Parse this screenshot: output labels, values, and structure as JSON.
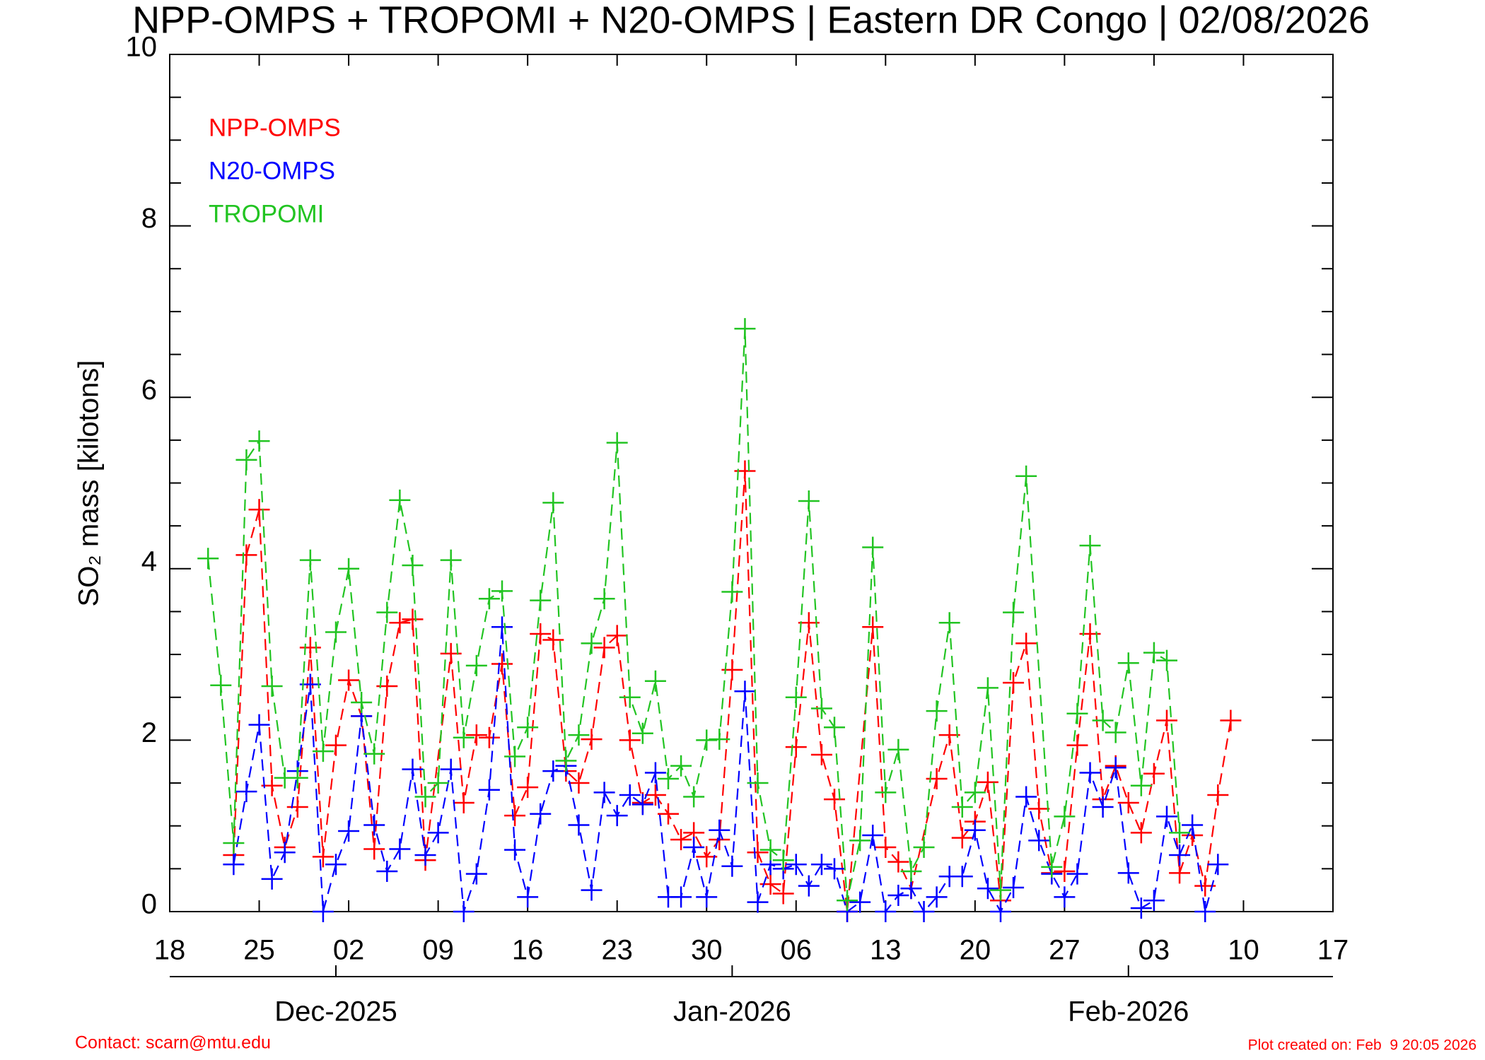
{
  "chart_data": {
    "type": "line",
    "title": "NPP-OMPS + TROPOMI + N20-OMPS | Eastern DR Congo | 02/08/2026",
    "ylabel": "SO₂ mass [kilotons]",
    "contact": "Contact: scarn@mtu.edu",
    "created": "Plot created on: Feb  9 20:05 2026",
    "ylim": [
      0,
      10
    ],
    "yticks": [
      0,
      2,
      4,
      6,
      8,
      10
    ],
    "yminorticks": [
      0.5,
      1,
      1.5,
      2.5,
      3,
      3.5,
      4.5,
      5,
      5.5,
      6.5,
      7,
      7.5,
      8.5,
      9,
      9.5
    ],
    "xlim": [
      "2025-11-18",
      "2026-02-17"
    ],
    "xticks": [
      {
        "value": "2025-11-18",
        "label": "18"
      },
      {
        "value": "2025-11-25",
        "label": "25"
      },
      {
        "value": "2025-12-02",
        "label": "02"
      },
      {
        "value": "2025-12-09",
        "label": "09"
      },
      {
        "value": "2025-12-16",
        "label": "16"
      },
      {
        "value": "2025-12-23",
        "label": "23"
      },
      {
        "value": "2025-12-30",
        "label": "30"
      },
      {
        "value": "2026-01-06",
        "label": "06"
      },
      {
        "value": "2026-01-13",
        "label": "13"
      },
      {
        "value": "2026-01-20",
        "label": "20"
      },
      {
        "value": "2026-01-27",
        "label": "27"
      },
      {
        "value": "2026-02-03",
        "label": "03"
      },
      {
        "value": "2026-02-10",
        "label": "10"
      },
      {
        "value": "2026-02-17",
        "label": "17"
      }
    ],
    "monthticks": [
      {
        "value": "2025-12-01",
        "label": "Dec-2025"
      },
      {
        "value": "2026-01-01",
        "label": "Jan-2026"
      },
      {
        "value": "2026-02-01",
        "label": "Feb-2026"
      }
    ],
    "legend": "upper left",
    "series": [
      {
        "name": "NPP-OMPS",
        "color": "#ff0000",
        "x": [
          "2025-11-23",
          "2025-11-24",
          "2025-11-25",
          "2025-11-26",
          "2025-11-27",
          "2025-11-28",
          "2025-11-29",
          "2025-11-30",
          "2025-12-01",
          "2025-12-02",
          "2025-12-03",
          "2025-12-04",
          "2025-12-05",
          "2025-12-06",
          "2025-12-07",
          "2025-12-08",
          "2025-12-10",
          "2025-12-11",
          "2025-12-12",
          "2025-12-13",
          "2025-12-14",
          "2025-12-15",
          "2025-12-16",
          "2025-12-17",
          "2025-12-18",
          "2025-12-19",
          "2025-12-20",
          "2025-12-21",
          "2025-12-22",
          "2025-12-23",
          "2025-12-24",
          "2025-12-25",
          "2025-12-26",
          "2025-12-27",
          "2025-12-28",
          "2025-12-29",
          "2025-12-30",
          "2025-12-31",
          "2026-01-01",
          "2026-01-02",
          "2026-01-03",
          "2026-01-04",
          "2026-01-05",
          "2026-01-06",
          "2026-01-07",
          "2026-01-08",
          "2026-01-09",
          "2026-01-10",
          "2026-01-12",
          "2026-01-13",
          "2026-01-14",
          "2026-01-15",
          "2026-01-17",
          "2026-01-18",
          "2026-01-19",
          "2026-01-20",
          "2026-01-21",
          "2026-01-22",
          "2026-01-23",
          "2026-01-24",
          "2026-01-25",
          "2026-01-26",
          "2026-01-27",
          "2026-01-28",
          "2026-01-29",
          "2026-01-30",
          "2026-01-31",
          "2026-02-01",
          "2026-02-02",
          "2026-02-03",
          "2026-02-04",
          "2026-02-05",
          "2026-02-06",
          "2026-02-07",
          "2026-02-08",
          "2026-02-09"
        ],
        "values": [
          0.66,
          4.16,
          4.69,
          1.47,
          0.75,
          1.22,
          3.08,
          0.64,
          1.94,
          2.7,
          2.28,
          0.73,
          2.63,
          3.37,
          3.41,
          0.6,
          3.01,
          1.27,
          2.06,
          2.03,
          2.89,
          1.12,
          1.45,
          3.24,
          3.17,
          1.64,
          1.5,
          2.01,
          3.08,
          3.22,
          2.0,
          1.27,
          1.36,
          1.14,
          0.84,
          0.92,
          0.64,
          0.84,
          2.82,
          5.14,
          0.69,
          0.32,
          0.21,
          1.92,
          3.37,
          1.83,
          1.31,
          0,
          3.32,
          0.75,
          0.58,
          0.27,
          1.55,
          2.06,
          0.86,
          1.05,
          1.51,
          0.13,
          2.67,
          3.13,
          1.2,
          0.45,
          0.47,
          1.94,
          3.24,
          1.31,
          1.7,
          1.27,
          0.92,
          1.61,
          2.23,
          0.45,
          0.89,
          0.3,
          1.36,
          2.23
        ]
      },
      {
        "name": "N20-OMPS",
        "color": "#0000ff",
        "x": [
          "2025-11-23",
          "2025-11-24",
          "2025-11-25",
          "2025-11-26",
          "2025-11-27",
          "2025-11-28",
          "2025-11-29",
          "2025-11-30",
          "2025-12-01",
          "2025-12-02",
          "2025-12-03",
          "2025-12-04",
          "2025-12-05",
          "2025-12-06",
          "2025-12-07",
          "2025-12-08",
          "2025-12-09",
          "2025-12-10",
          "2025-12-11",
          "2025-12-12",
          "2025-12-13",
          "2025-12-14",
          "2025-12-15",
          "2025-12-16",
          "2025-12-17",
          "2025-12-18",
          "2025-12-19",
          "2025-12-20",
          "2025-12-21",
          "2025-12-22",
          "2025-12-23",
          "2025-12-24",
          "2025-12-25",
          "2025-12-26",
          "2025-12-27",
          "2025-12-28",
          "2025-12-29",
          "2025-12-30",
          "2025-12-31",
          "2026-01-01",
          "2026-01-02",
          "2026-01-03",
          "2026-01-04",
          "2026-01-05",
          "2026-01-06",
          "2026-01-07",
          "2026-01-08",
          "2026-01-09",
          "2026-01-10",
          "2026-01-11",
          "2026-01-12",
          "2026-01-13",
          "2026-01-14",
          "2026-01-15",
          "2026-01-16",
          "2026-01-17",
          "2026-01-18",
          "2026-01-19",
          "2026-01-20",
          "2026-01-21",
          "2026-01-22",
          "2026-01-23",
          "2026-01-24",
          "2026-01-25",
          "2026-01-26",
          "2026-01-27",
          "2026-01-28",
          "2026-01-29",
          "2026-01-30",
          "2026-01-31",
          "2026-02-01",
          "2026-02-02",
          "2026-02-03",
          "2026-02-04",
          "2026-02-05",
          "2026-02-06",
          "2026-02-07",
          "2026-02-08"
        ],
        "values": [
          0.55,
          1.4,
          2.18,
          0.38,
          0.69,
          1.64,
          2.65,
          0,
          0.55,
          0.94,
          2.28,
          1.01,
          0.47,
          0.73,
          1.66,
          0.66,
          0.92,
          1.66,
          0,
          0.44,
          1.42,
          3.32,
          0.72,
          0.17,
          1.14,
          1.64,
          1.7,
          1.01,
          0.25,
          1.39,
          1.12,
          1.36,
          1.25,
          1.62,
          0.17,
          0.17,
          0.75,
          0.17,
          0.95,
          0.53,
          2.57,
          0.11,
          0.55,
          0.5,
          0.55,
          0.3,
          0.55,
          0.5,
          0,
          0.11,
          0.89,
          0,
          0.19,
          0.27,
          0,
          0.17,
          0.41,
          0.41,
          0.95,
          0.27,
          0,
          0.28,
          1.34,
          0.83,
          0.44,
          0.17,
          0.44,
          1.62,
          1.22,
          1.68,
          0.45,
          0.04,
          0.13,
          1.11,
          0.66,
          1.01,
          0,
          0.55
        ]
      },
      {
        "name": "TROPOMI",
        "color": "#22c422",
        "x": [
          "2025-11-21",
          "2025-11-22",
          "2025-11-23",
          "2025-11-24",
          "2025-11-25",
          "2025-11-26",
          "2025-11-27",
          "2025-11-28",
          "2025-11-29",
          "2025-11-30",
          "2025-12-01",
          "2025-12-02",
          "2025-12-03",
          "2025-12-04",
          "2025-12-05",
          "2025-12-06",
          "2025-12-07",
          "2025-12-08",
          "2025-12-09",
          "2025-12-10",
          "2025-12-11",
          "2025-12-12",
          "2025-12-13",
          "2025-12-14",
          "2025-12-15",
          "2025-12-16",
          "2025-12-17",
          "2025-12-18",
          "2025-12-19",
          "2025-12-20",
          "2025-12-21",
          "2025-12-22",
          "2025-12-23",
          "2025-12-24",
          "2025-12-25",
          "2025-12-26",
          "2025-12-27",
          "2025-12-28",
          "2025-12-29",
          "2025-12-30",
          "2025-12-31",
          "2026-01-01",
          "2026-01-02",
          "2026-01-03",
          "2026-01-04",
          "2026-01-05",
          "2026-01-06",
          "2026-01-07",
          "2026-01-08",
          "2026-01-09",
          "2026-01-10",
          "2026-01-11",
          "2026-01-12",
          "2026-01-13",
          "2026-01-14",
          "2026-01-15",
          "2026-01-16",
          "2026-01-17",
          "2026-01-18",
          "2026-01-19",
          "2026-01-20",
          "2026-01-21",
          "2026-01-22",
          "2026-01-23",
          "2026-01-24",
          "2026-01-26",
          "2026-01-27",
          "2026-01-28",
          "2026-01-29",
          "2026-01-30",
          "2026-01-31",
          "2026-02-01",
          "2026-02-02",
          "2026-02-03",
          "2026-02-04",
          "2026-02-05"
        ],
        "values": [
          4.12,
          2.64,
          0.8,
          5.27,
          5.49,
          2.63,
          1.56,
          1.56,
          4.1,
          1.87,
          3.26,
          4.0,
          2.44,
          1.84,
          3.49,
          4.8,
          4.04,
          1.34,
          1.5,
          4.1,
          2.03,
          2.87,
          3.65,
          3.74,
          1.81,
          2.15,
          3.63,
          4.77,
          1.76,
          2.06,
          3.13,
          3.65,
          5.47,
          2.5,
          2.08,
          2.69,
          1.55,
          1.7,
          1.34,
          2.0,
          2.01,
          3.73,
          6.8,
          1.5,
          0.72,
          0.6,
          2.5,
          4.79,
          2.37,
          2.15,
          0.13,
          0.83,
          4.25,
          1.39,
          1.89,
          0.47,
          0.75,
          2.34,
          3.37,
          1.22,
          1.39,
          2.61,
          0.25,
          3.49,
          5.08,
          0.52,
          1.11,
          2.31,
          4.27,
          2.23,
          2.09,
          2.9,
          1.47,
          3.02,
          2.93,
          0.92
        ]
      }
    ]
  }
}
